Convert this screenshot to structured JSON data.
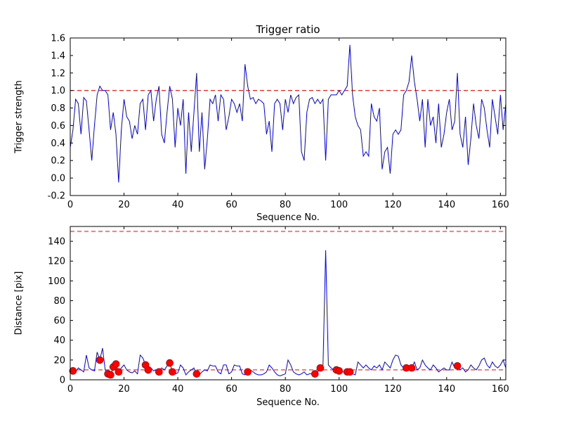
{
  "figure": {
    "background": "#ffffff",
    "colors": {
      "line": "#0000ff",
      "threshold": "#ff0000",
      "marker": "#ff0000",
      "marker_edge": "#8b0000",
      "axes": "#000000"
    }
  },
  "chart_data": [
    {
      "type": "line",
      "title": "Trigger ratio",
      "xlabel": "Sequence No.",
      "ylabel": "Trigger strength",
      "xlim": [
        0,
        162
      ],
      "ylim": [
        -0.2,
        1.6
      ],
      "xticks": [
        0,
        20,
        40,
        60,
        80,
        100,
        120,
        140,
        160
      ],
      "xticklabels": [
        "0",
        "20",
        "40",
        "60",
        "80",
        "100",
        "120",
        "140",
        "160"
      ],
      "yticks": [
        -0.2,
        0.0,
        0.2,
        0.4,
        0.6,
        0.8,
        1.0,
        1.2,
        1.4,
        1.6
      ],
      "yticklabels": [
        "-0.2",
        "0.0",
        "0.2",
        "0.4",
        "0.6",
        "0.8",
        "1.0",
        "1.2",
        "1.4",
        "1.6"
      ],
      "grid": false,
      "legend": "none",
      "hlines": [
        1.0
      ],
      "series": [
        {
          "name": "trigger-strength",
          "values": [
            0.35,
            0.55,
            0.9,
            0.85,
            0.5,
            0.92,
            0.88,
            0.55,
            0.2,
            0.6,
            0.95,
            1.05,
            1.0,
            1.0,
            0.95,
            0.55,
            0.75,
            0.5,
            -0.05,
            0.55,
            0.9,
            0.7,
            0.65,
            0.45,
            0.6,
            0.5,
            0.85,
            0.9,
            0.55,
            0.95,
            1.0,
            0.65,
            0.9,
            1.05,
            0.5,
            0.4,
            0.75,
            1.05,
            0.9,
            0.35,
            0.8,
            0.6,
            0.9,
            0.05,
            0.75,
            0.3,
            0.75,
            1.2,
            0.3,
            0.75,
            0.1,
            0.45,
            0.9,
            0.85,
            0.95,
            0.65,
            0.95,
            0.9,
            0.55,
            0.7,
            0.9,
            0.85,
            0.75,
            0.85,
            0.65,
            1.3,
            1.05,
            0.9,
            0.92,
            0.85,
            0.9,
            0.88,
            0.85,
            0.5,
            0.65,
            0.3,
            0.85,
            0.9,
            0.85,
            0.55,
            0.9,
            0.75,
            0.95,
            0.85,
            0.92,
            0.95,
            0.3,
            0.2,
            0.75,
            0.9,
            0.92,
            0.85,
            0.9,
            0.85,
            0.9,
            0.2,
            0.9,
            0.95,
            0.95,
            0.95,
            1.0,
            0.95,
            1.0,
            1.05,
            1.52,
            0.95,
            0.7,
            0.6,
            0.55,
            0.25,
            0.3,
            0.25,
            0.85,
            0.7,
            0.65,
            0.8,
            0.1,
            0.3,
            0.35,
            0.05,
            0.5,
            0.55,
            0.5,
            0.55,
            0.95,
            1.0,
            1.1,
            1.4,
            1.1,
            0.9,
            0.65,
            0.9,
            0.35,
            0.9,
            0.6,
            0.7,
            0.4,
            0.85,
            0.35,
            0.5,
            0.75,
            0.9,
            0.55,
            0.65,
            1.2,
            0.5,
            0.35,
            0.7,
            0.15,
            0.45,
            0.85,
            0.6,
            0.45,
            0.9,
            0.8,
            0.55,
            0.35,
            0.9,
            0.7,
            0.5,
            0.95,
            0.55,
            0.85
          ]
        }
      ],
      "markers": []
    },
    {
      "type": "line",
      "title": "",
      "xlabel": "Sequence No.",
      "ylabel": "Distance [pix]",
      "xlim": [
        0,
        162
      ],
      "ylim": [
        0,
        155
      ],
      "xticks": [
        0,
        20,
        40,
        60,
        80,
        100,
        120,
        140,
        160
      ],
      "xticklabels": [
        "0",
        "20",
        "40",
        "60",
        "80",
        "100",
        "120",
        "140",
        "160"
      ],
      "yticks": [
        0,
        20,
        40,
        60,
        80,
        100,
        120,
        140
      ],
      "yticklabels": [
        "0",
        "20",
        "40",
        "60",
        "80",
        "100",
        "120",
        "140"
      ],
      "grid": false,
      "legend": "none",
      "hlines": [
        150,
        10
      ],
      "series": [
        {
          "name": "distance",
          "values": [
            11,
            9,
            8,
            12,
            10,
            8,
            25,
            12,
            10,
            9,
            28,
            20,
            32,
            10,
            6,
            5,
            13,
            16,
            8,
            12,
            15,
            10,
            8,
            7,
            9,
            6,
            25,
            22,
            15,
            10,
            12,
            9,
            10,
            8,
            12,
            10,
            14,
            17,
            8,
            6,
            7,
            15,
            12,
            5,
            8,
            10,
            12,
            6,
            5,
            8,
            10,
            9,
            15,
            14,
            14,
            8,
            6,
            15,
            15,
            6,
            8,
            15,
            14,
            14,
            6,
            5,
            8,
            10,
            8,
            6,
            5,
            5,
            6,
            8,
            15,
            12,
            8,
            5,
            4,
            5,
            6,
            20,
            15,
            8,
            6,
            5,
            6,
            8,
            5,
            6,
            6,
            6,
            8,
            12,
            14,
            131,
            15,
            12,
            10,
            10,
            9,
            8,
            8,
            8,
            8,
            6,
            5,
            18,
            15,
            12,
            15,
            12,
            10,
            14,
            12,
            15,
            10,
            18,
            15,
            12,
            20,
            25,
            24,
            15,
            12,
            12,
            14,
            12,
            18,
            10,
            12,
            20,
            15,
            12,
            10,
            15,
            12,
            8,
            10,
            12,
            10,
            10,
            18,
            12,
            14,
            10,
            12,
            8,
            10,
            15,
            12,
            10,
            14,
            20,
            22,
            15,
            12,
            18,
            14,
            12,
            15,
            20,
            12
          ]
        }
      ],
      "markers": [
        [
          1,
          9
        ],
        [
          11,
          20
        ],
        [
          14,
          6
        ],
        [
          15,
          5
        ],
        [
          16,
          13
        ],
        [
          17,
          16
        ],
        [
          18,
          8
        ],
        [
          28,
          15
        ],
        [
          29,
          10
        ],
        [
          33,
          8
        ],
        [
          37,
          17
        ],
        [
          38,
          8
        ],
        [
          47,
          6
        ],
        [
          66,
          8
        ],
        [
          91,
          6
        ],
        [
          93,
          12
        ],
        [
          99,
          10
        ],
        [
          100,
          9
        ],
        [
          103,
          8
        ],
        [
          104,
          8
        ],
        [
          125,
          12
        ],
        [
          127,
          12
        ],
        [
          144,
          14
        ]
      ]
    }
  ]
}
